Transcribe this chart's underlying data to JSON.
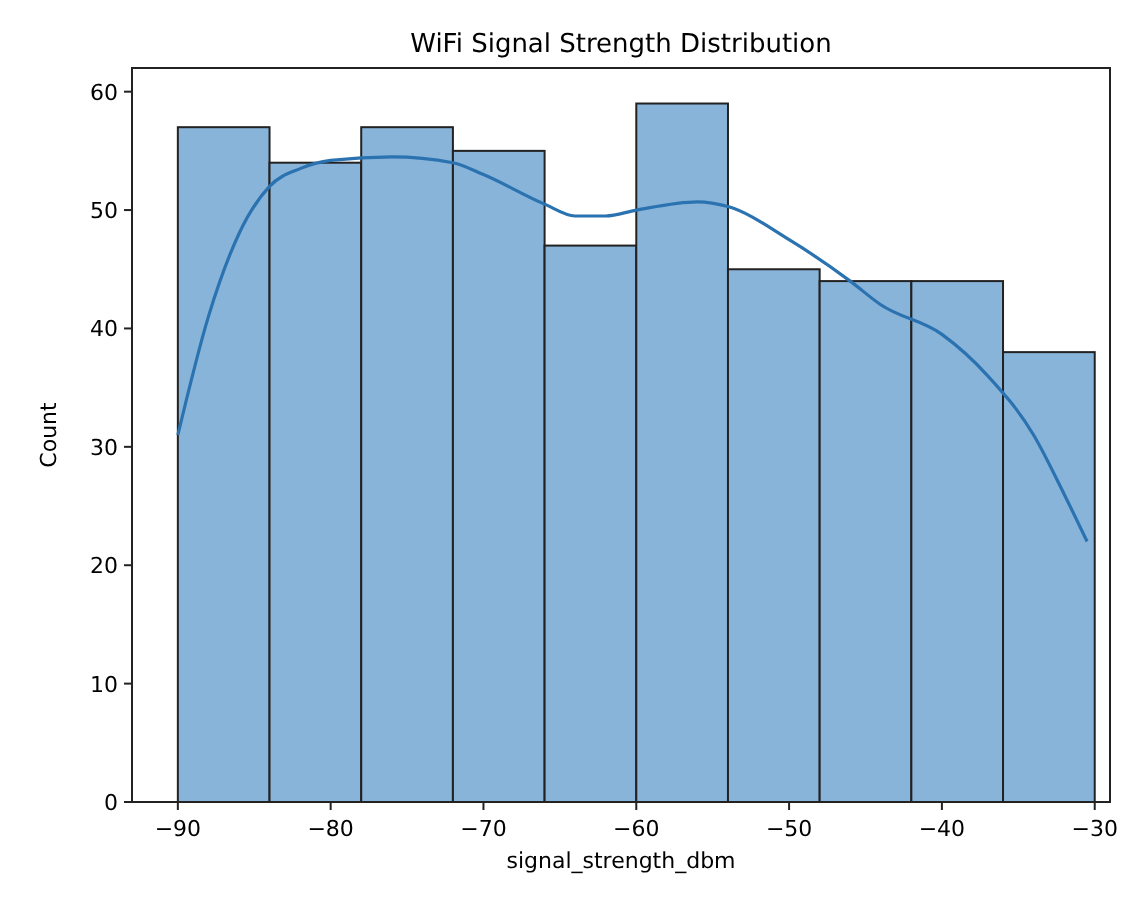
{
  "chart_data": {
    "type": "histogram",
    "title": "WiFi Signal Strength Distribution",
    "xlabel": "signal_strength_dbm",
    "ylabel": "Count",
    "bins": [
      -90,
      -84,
      -78,
      -72,
      -66,
      -60,
      -54,
      -48,
      -42,
      -36,
      -30
    ],
    "values": [
      57,
      54,
      57,
      55,
      47,
      59,
      45,
      44,
      44,
      38
    ],
    "color": "#89b4da",
    "series": [
      {
        "type": "line",
        "color": "#2b72b0",
        "x": [
          -90,
          -88,
          -86,
          -84,
          -82,
          -80,
          -76,
          -72,
          -70,
          -66,
          -64,
          -62,
          -60,
          -56,
          -54,
          -50,
          -46,
          -44,
          -40,
          -37,
          -34,
          -32,
          -30.5
        ],
        "values": [
          31,
          41,
          48,
          52,
          53.5,
          54.2,
          54.5,
          54,
          53,
          50.5,
          49.5,
          49.5,
          50,
          50.7,
          50.3,
          47.5,
          44,
          42,
          39.5,
          36,
          31,
          26,
          22
        ]
      }
    ],
    "xlim": [
      -93,
      -29
    ],
    "ylim": [
      0,
      62
    ],
    "xticks": [
      {
        "value": -90,
        "label": "−90"
      },
      {
        "value": -80,
        "label": "−80"
      },
      {
        "value": -70,
        "label": "−70"
      },
      {
        "value": -60,
        "label": "−60"
      },
      {
        "value": -50,
        "label": "−50"
      },
      {
        "value": -40,
        "label": "−40"
      },
      {
        "value": -30,
        "label": "−30"
      }
    ],
    "yticks": [
      0,
      10,
      20,
      30,
      40,
      50,
      60
    ]
  }
}
